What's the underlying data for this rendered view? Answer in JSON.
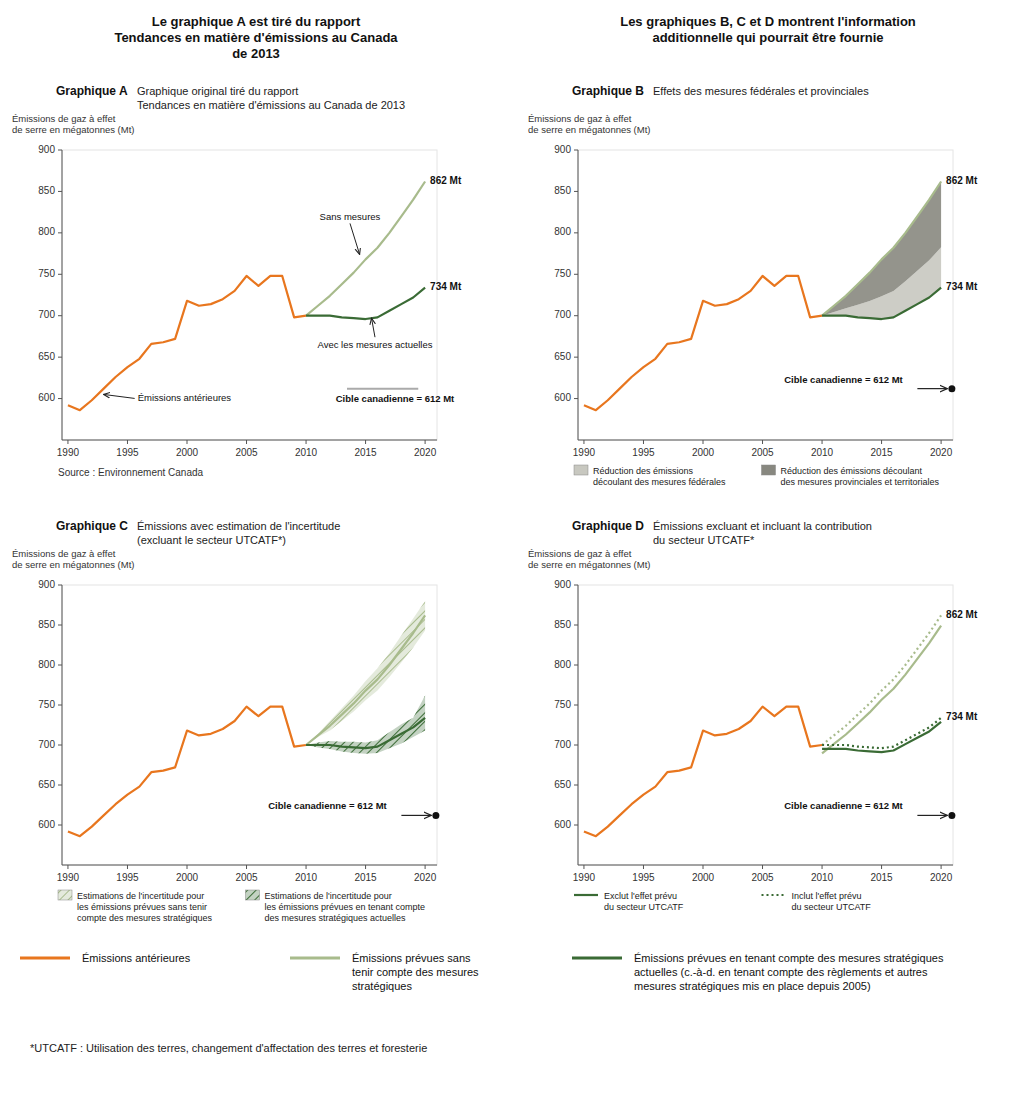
{
  "titles": [
    "Le graphique A est tiré du rapport\nTendances en matière d'émissions au Canada\nde 2013",
    "Les graphiques B, C et D montrent l'information\nadditionnelle qui pourrait être fournie"
  ],
  "footnote": "*UTCATF : Utilisation des terres, changement d'affectation des terres et foresterie",
  "chart_data": [
    {
      "type": "line",
      "title": "Graphique A",
      "subtitle": "Graphique original tiré du rapport\nTendances en matière d'émissions au Canada de 2013",
      "y_label": "Émissions de gaz à effet\nde serre en mégatonnes (Mt)",
      "source": "Source : Environnement Canada",
      "xlim": [
        1989.5,
        2021
      ],
      "ylim": [
        550,
        900
      ],
      "xticks": [
        1990,
        1995,
        2000,
        2005,
        2010,
        2015,
        2020
      ],
      "yticks": [
        600,
        650,
        700,
        750,
        800,
        850,
        900
      ],
      "grid": false,
      "legend": "page",
      "series": [
        {
          "name": "Émissions antérieures",
          "color": "#e8761e",
          "x": [
            1990,
            1991,
            1992,
            1993,
            1994,
            1995,
            1996,
            1997,
            1998,
            1999,
            2000,
            2001,
            2002,
            2003,
            2004,
            2005,
            2006,
            2007,
            2008,
            2009,
            2010
          ],
          "values": [
            592,
            586,
            598,
            612,
            626,
            638,
            648,
            666,
            668,
            672,
            718,
            712,
            714,
            720,
            730,
            748,
            736,
            748,
            748,
            698,
            700
          ]
        },
        {
          "name": "Émissions prévues sans\ntenir compte des mesures\nstratégiques",
          "color": "#a8bb8c",
          "x": [
            2010,
            2011,
            2012,
            2013,
            2014,
            2015,
            2016,
            2017,
            2018,
            2019,
            2020
          ],
          "values": [
            700,
            712,
            724,
            738,
            752,
            768,
            782,
            800,
            820,
            840,
            862
          ],
          "value_labels": [
            null,
            null,
            null,
            null,
            null,
            null,
            null,
            null,
            null,
            null,
            "862 Mt"
          ]
        },
        {
          "name": "Émissions prévues en tenant compte des mesures stratégiques\nactuelles (c.-à-d. en tenant compte des règlements et autres\nmesures stratégiques mis en place depuis 2005)",
          "color": "#3a6b35",
          "x": [
            2010,
            2011,
            2012,
            2013,
            2014,
            2015,
            2016,
            2017,
            2018,
            2019,
            2020
          ],
          "values": [
            700,
            700,
            700,
            698,
            697,
            696,
            698,
            706,
            714,
            722,
            734
          ],
          "value_labels": [
            null,
            null,
            null,
            null,
            null,
            null,
            null,
            null,
            null,
            null,
            "734 Mt"
          ]
        }
      ],
      "annotations": [
        {
          "text": "Émissions antérieures",
          "x": 1993,
          "y": 605
        },
        {
          "text": "Sans mesures",
          "x": 2014.5,
          "y": 774
        },
        {
          "text": "Avec les mesures actuelles",
          "x": 2015.5,
          "y": 697
        }
      ],
      "target": {
        "value": 612,
        "label": "Cible canadienne = 612 Mt",
        "marker": "line"
      }
    },
    {
      "type": "line",
      "title": "Graphique B",
      "subtitle": "Effets des mesures fédérales et provinciales",
      "y_label": "Émissions de gaz à effet\nde serre en mégatonnes (Mt)",
      "xlim": [
        1989.5,
        2021
      ],
      "ylim": [
        550,
        900
      ],
      "xticks": [
        1990,
        1995,
        2000,
        2005,
        2010,
        2015,
        2020
      ],
      "yticks": [
        600,
        650,
        700,
        750,
        800,
        850,
        900
      ],
      "grid": false,
      "legend": "bottom",
      "stacked": true,
      "series": [
        {
          "type": "band",
          "name": "Réduction des émissions\ndécoulant des mesures fédérales",
          "color": "#c8c8c0",
          "x": [
            2010,
            2011,
            2012,
            2013,
            2014,
            2015,
            2016,
            2017,
            2018,
            2019,
            2020
          ],
          "low": [
            700,
            700,
            700,
            698,
            697,
            696,
            698,
            706,
            714,
            722,
            734
          ],
          "high": [
            700,
            704.56,
            709.12,
            713.2,
            717.9,
            723.36,
            729.92,
            741.72,
            754.28,
            766.84,
            782.64
          ]
        },
        {
          "type": "band",
          "name": "Réduction des émissions découlant\ndes mesures provinciales et territoriales",
          "color": "#888880",
          "x": [
            2010,
            2011,
            2012,
            2013,
            2014,
            2015,
            2016,
            2017,
            2018,
            2019,
            2020
          ],
          "low": [
            700,
            704.56,
            709.12,
            713.2,
            717.9,
            723.36,
            729.92,
            741.72,
            754.28,
            766.84,
            782.64
          ],
          "high": [
            700,
            712,
            724,
            738,
            752,
            768,
            782,
            800,
            820,
            840,
            862
          ]
        },
        {
          "color": "#e8761e",
          "x": [
            1990,
            1991,
            1992,
            1993,
            1994,
            1995,
            1996,
            1997,
            1998,
            1999,
            2000,
            2001,
            2002,
            2003,
            2004,
            2005,
            2006,
            2007,
            2008,
            2009,
            2010
          ],
          "values": [
            592,
            586,
            598,
            612,
            626,
            638,
            648,
            666,
            668,
            672,
            718,
            712,
            714,
            720,
            730,
            748,
            736,
            748,
            748,
            698,
            700
          ]
        },
        {
          "color": "#a8bb8c",
          "x": [
            2010,
            2011,
            2012,
            2013,
            2014,
            2015,
            2016,
            2017,
            2018,
            2019,
            2020
          ],
          "values": [
            700,
            712,
            724,
            738,
            752,
            768,
            782,
            800,
            820,
            840,
            862
          ],
          "value_labels": [
            null,
            null,
            null,
            null,
            null,
            null,
            null,
            null,
            null,
            null,
            "862 Mt"
          ]
        },
        {
          "color": "#3a6b35",
          "x": [
            2010,
            2011,
            2012,
            2013,
            2014,
            2015,
            2016,
            2017,
            2018,
            2019,
            2020
          ],
          "values": [
            700,
            700,
            700,
            698,
            697,
            696,
            698,
            706,
            714,
            722,
            734
          ],
          "value_labels": [
            null,
            null,
            null,
            null,
            null,
            null,
            null,
            null,
            null,
            null,
            "734 Mt"
          ]
        }
      ],
      "target": {
        "value": 612,
        "label": "Cible canadienne = 612 Mt",
        "marker": "circle"
      }
    },
    {
      "type": "line",
      "title": "Graphique C",
      "subtitle": "Émissions avec estimation de l'incertitude\n(excluant le secteur UTCATF*)",
      "y_label": "Émissions de gaz à effet\nde serre en mégatonnes (Mt)",
      "xlim": [
        1989.5,
        2021
      ],
      "ylim": [
        550,
        900
      ],
      "xticks": [
        1990,
        1995,
        2000,
        2005,
        2010,
        2015,
        2020
      ],
      "yticks": [
        600,
        650,
        700,
        750,
        800,
        850,
        900
      ],
      "grid": false,
      "legend": "bottom",
      "series": [
        {
          "type": "band",
          "name": "Estimations de l'incertitude pour\nles émissions prévues sans tenir\ncompte des mesures stratégiques",
          "color": "#a8bb8c",
          "x": [
            2010,
            2011,
            2012,
            2013,
            2014,
            2015,
            2016,
            2017,
            2018,
            2019,
            2020
          ],
          "low": [
            700,
            710,
            718,
            730,
            742,
            756,
            768,
            785,
            803,
            822,
            843
          ],
          "high": [
            700,
            714,
            730,
            746,
            762,
            780,
            796,
            815,
            837,
            858,
            880
          ]
        },
        {
          "type": "band",
          "name": "Estimations de l'incertitude pour\nles émissions prévues en tenant compte\ndes mesures stratégiques actuelles",
          "color": "#3a6b35",
          "x": [
            2010,
            2011,
            2012,
            2013,
            2014,
            2015,
            2016,
            2017,
            2018,
            2019,
            2020
          ],
          "low": [
            700,
            697,
            695,
            692,
            690,
            689,
            690,
            696,
            702,
            710,
            718
          ],
          "high": [
            700,
            703,
            705,
            704,
            704,
            703,
            706,
            716,
            726,
            734,
            762
          ]
        },
        {
          "color": "#e8761e",
          "x": [
            1990,
            1991,
            1992,
            1993,
            1994,
            1995,
            1996,
            1997,
            1998,
            1999,
            2000,
            2001,
            2002,
            2003,
            2004,
            2005,
            2006,
            2007,
            2008,
            2009,
            2010
          ],
          "values": [
            592,
            586,
            598,
            612,
            626,
            638,
            648,
            666,
            668,
            672,
            718,
            712,
            714,
            720,
            730,
            748,
            736,
            748,
            748,
            698,
            700
          ]
        },
        {
          "color": "#a8bb8c",
          "x": [
            2010,
            2011,
            2012,
            2013,
            2014,
            2015,
            2016,
            2017,
            2018,
            2019,
            2020
          ],
          "values": [
            700,
            712,
            724,
            738,
            752,
            768,
            782,
            800,
            820,
            840,
            862
          ]
        },
        {
          "color": "#3a6b35",
          "x": [
            2010,
            2011,
            2012,
            2013,
            2014,
            2015,
            2016,
            2017,
            2018,
            2019,
            2020
          ],
          "values": [
            700,
            700,
            700,
            698,
            697,
            696,
            698,
            706,
            714,
            722,
            734
          ]
        }
      ],
      "target": {
        "value": 612,
        "label": "Cible canadienne = 612 Mt",
        "marker": "circle"
      }
    },
    {
      "type": "line",
      "title": "Graphique D",
      "subtitle": "Émissions excluant et incluant la contribution\ndu secteur UTCATF*",
      "y_label": "Émissions de gaz à effet\nde serre en mégatonnes (Mt)",
      "xlim": [
        1989.5,
        2021
      ],
      "ylim": [
        550,
        900
      ],
      "xticks": [
        1990,
        1995,
        2000,
        2005,
        2010,
        2015,
        2020
      ],
      "yticks": [
        600,
        650,
        700,
        750,
        800,
        850,
        900
      ],
      "grid": false,
      "legend": "bottom",
      "series": [
        {
          "color": "#a8bb8c",
          "line_style": "solid",
          "x": [
            2010,
            2011,
            2012,
            2013,
            2014,
            2015,
            2016,
            2017,
            2018,
            2019,
            2020
          ],
          "values": [
            689.5,
            701.32,
            713.14,
            726.93,
            740.72,
            756.48,
            770.27,
            788,
            807.7,
            827.4,
            849.07
          ]
        },
        {
          "name": "Exclut l'effet prévu\ndu secteur UTCATF",
          "color": "#3a6b35",
          "line_style": "solid",
          "x": [
            2010,
            2011,
            2012,
            2013,
            2014,
            2015,
            2016,
            2017,
            2018,
            2019,
            2020
          ],
          "values": [
            695.1,
            695.1,
            695.1,
            693.114,
            692.121,
            691.128,
            693.114,
            701.058,
            709.002,
            716.946,
            728.862
          ]
        },
        {
          "color": "#a8bb8c",
          "line_style": "dotted",
          "x": [
            2010,
            2011,
            2012,
            2013,
            2014,
            2015,
            2016,
            2017,
            2018,
            2019,
            2020
          ],
          "values": [
            700,
            712,
            724,
            738,
            752,
            768,
            782,
            800,
            820,
            840,
            862
          ],
          "value_labels": [
            null,
            null,
            null,
            null,
            null,
            null,
            null,
            null,
            null,
            null,
            "862 Mt"
          ]
        },
        {
          "name": "Inclut l'effet prévu\ndu secteur UTCATF",
          "color": "#3a6b35",
          "line_style": "dotted",
          "x": [
            2010,
            2011,
            2012,
            2013,
            2014,
            2015,
            2016,
            2017,
            2018,
            2019,
            2020
          ],
          "values": [
            700,
            700,
            700,
            698,
            697,
            696,
            698,
            706,
            714,
            722,
            734
          ],
          "value_labels": [
            null,
            null,
            null,
            null,
            null,
            null,
            null,
            null,
            null,
            null,
            "734 Mt"
          ]
        },
        {
          "color": "#e8761e",
          "line_style": "solid",
          "x": [
            1990,
            1991,
            1992,
            1993,
            1994,
            1995,
            1996,
            1997,
            1998,
            1999,
            2000,
            2001,
            2002,
            2003,
            2004,
            2005,
            2006,
            2007,
            2008,
            2009,
            2010
          ],
          "values": [
            592,
            586,
            598,
            612,
            626,
            638,
            648,
            666,
            668,
            672,
            718,
            712,
            714,
            720,
            730,
            748,
            736,
            748,
            748,
            698,
            700
          ]
        }
      ],
      "target": {
        "value": 612,
        "label": "Cible canadienne = 612 Mt",
        "marker": "circle"
      }
    }
  ]
}
